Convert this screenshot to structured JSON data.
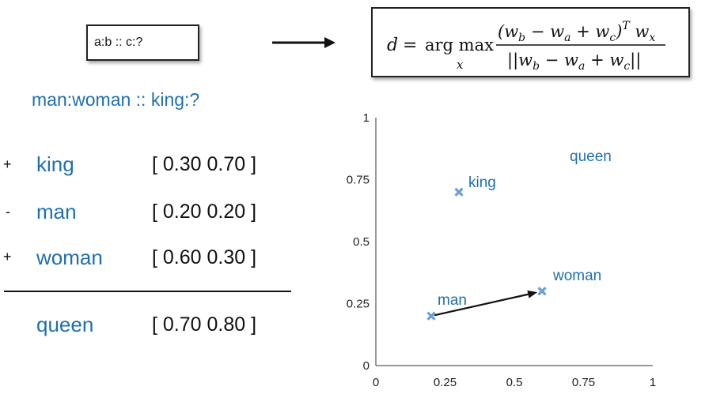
{
  "analogy": {
    "text": "a:b :: c:?"
  },
  "formula": {
    "lhs": "d = arg max",
    "sub": "x",
    "numerator": "(w_b − w_a + w_c)^T w_x",
    "denominator": "||w_b − w_a + w_c||"
  },
  "example": {
    "title": "man:woman :: king:?"
  },
  "terms": [
    {
      "op": "+",
      "word": "king",
      "vector": "[ 0.30 0.70 ]"
    },
    {
      "op": "-",
      "word": "man",
      "vector": "[ 0.20 0.20 ]"
    },
    {
      "op": "+",
      "word": "woman",
      "vector": "[ 0.60 0.30 ]"
    }
  ],
  "result": {
    "word": "queen",
    "vector": "[ 0.70 0.80 ]"
  },
  "chart_data": {
    "type": "scatter",
    "xlim": [
      0,
      1
    ],
    "ylim": [
      0,
      1
    ],
    "x_ticks": [
      "0",
      "0.25",
      "0.5",
      "0.75",
      "1"
    ],
    "y_ticks": [
      "0",
      "0.25",
      "0.5",
      "0.75",
      "1"
    ],
    "points": [
      {
        "label": "king",
        "x": 0.3,
        "y": 0.7,
        "marker": "x"
      },
      {
        "label": "man",
        "x": 0.2,
        "y": 0.2,
        "marker": "x"
      },
      {
        "label": "woman",
        "x": 0.6,
        "y": 0.3,
        "marker": "x"
      },
      {
        "label": "queen",
        "x": 0.7,
        "y": 0.8,
        "marker": "none"
      }
    ],
    "arrow": {
      "from": "man",
      "to": "woman"
    },
    "grid": false,
    "colors": {
      "marker": "#6a9fd8",
      "label": "#1f6fb0",
      "arrow": "#111111"
    }
  }
}
